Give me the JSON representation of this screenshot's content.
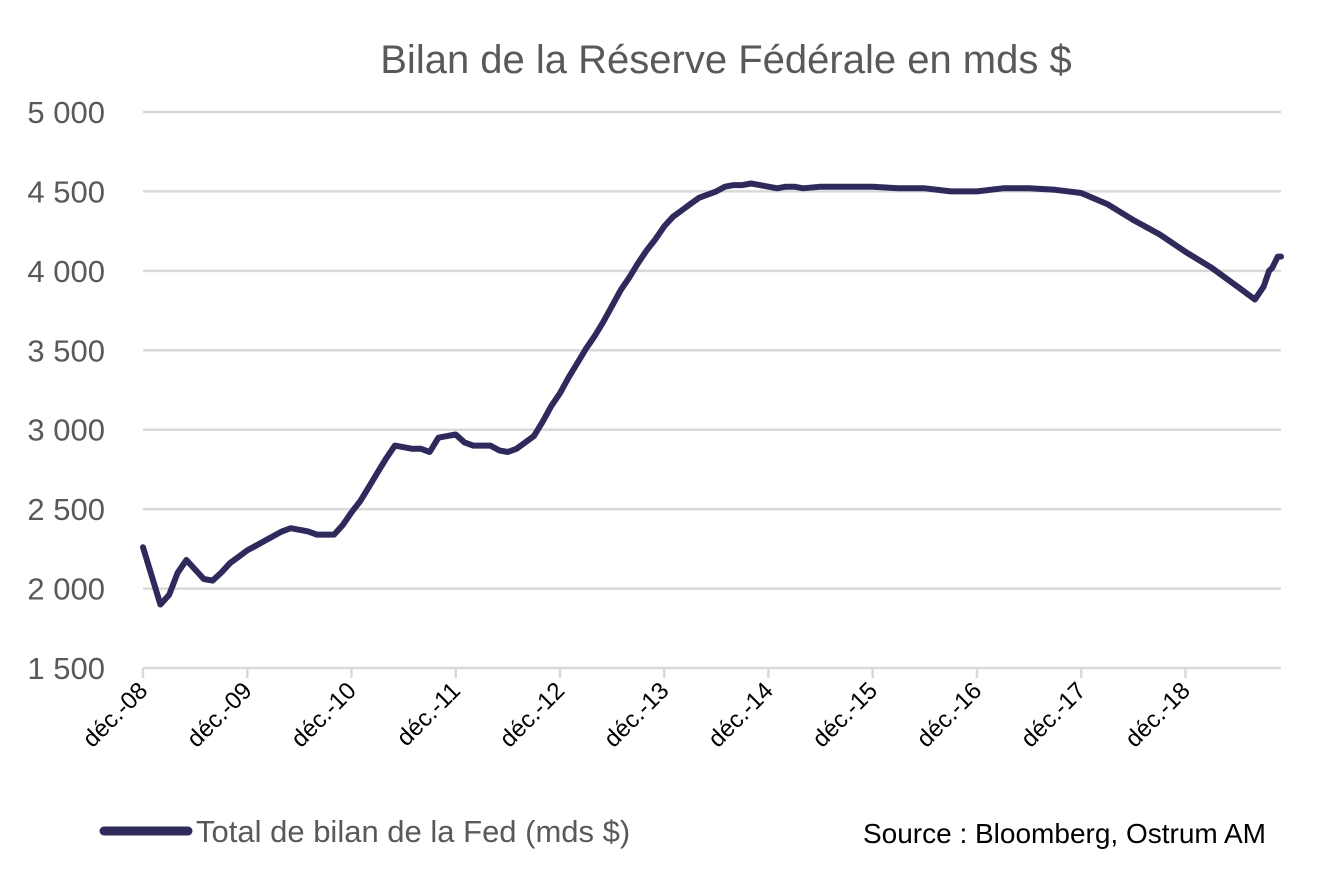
{
  "chart_data": {
    "type": "line",
    "title": "Bilan de la Réserve Fédérale en mds $",
    "xlabel": "",
    "ylabel": "",
    "ylim": [
      1500,
      5000
    ],
    "y_ticks": [
      {
        "value": 1500,
        "label": "1 500"
      },
      {
        "value": 2000,
        "label": "2 000"
      },
      {
        "value": 2500,
        "label": "2 500"
      },
      {
        "value": 3000,
        "label": "3 000"
      },
      {
        "value": 3500,
        "label": "3 500"
      },
      {
        "value": 4000,
        "label": "4 000"
      },
      {
        "value": 4500,
        "label": "4 500"
      },
      {
        "value": 5000,
        "label": "5 000"
      }
    ],
    "x_range": [
      "2008-12",
      "2019-11"
    ],
    "x_ticks": [
      {
        "date": "2008-12",
        "label": "déc.-08"
      },
      {
        "date": "2009-12",
        "label": "déc.-09"
      },
      {
        "date": "2010-12",
        "label": "déc.-10"
      },
      {
        "date": "2011-12",
        "label": "déc.-11"
      },
      {
        "date": "2012-12",
        "label": "déc.-12"
      },
      {
        "date": "2013-12",
        "label": "déc.-13"
      },
      {
        "date": "2014-12",
        "label": "déc.-14"
      },
      {
        "date": "2015-12",
        "label": "déc.-15"
      },
      {
        "date": "2016-12",
        "label": "déc.-16"
      },
      {
        "date": "2017-12",
        "label": "déc.-17"
      },
      {
        "date": "2018-12",
        "label": "déc.-18"
      }
    ],
    "grid": true,
    "legend_position": "bottom-left",
    "series": [
      {
        "name": "Total de bilan de la Fed (mds $)",
        "color": "#2e2a5c",
        "points": [
          {
            "x": "2008-12",
            "y": 2260
          },
          {
            "x": "2009-01",
            "y": 2080
          },
          {
            "x": "2009-02",
            "y": 1900
          },
          {
            "x": "2009-03",
            "y": 1960
          },
          {
            "x": "2009-04",
            "y": 2100
          },
          {
            "x": "2009-05",
            "y": 2180
          },
          {
            "x": "2009-06",
            "y": 2120
          },
          {
            "x": "2009-07",
            "y": 2060
          },
          {
            "x": "2009-08",
            "y": 2050
          },
          {
            "x": "2009-09",
            "y": 2100
          },
          {
            "x": "2009-10",
            "y": 2160
          },
          {
            "x": "2009-11",
            "y": 2200
          },
          {
            "x": "2009-12",
            "y": 2240
          },
          {
            "x": "2010-01",
            "y": 2270
          },
          {
            "x": "2010-02",
            "y": 2300
          },
          {
            "x": "2010-03",
            "y": 2330
          },
          {
            "x": "2010-04",
            "y": 2360
          },
          {
            "x": "2010-05",
            "y": 2380
          },
          {
            "x": "2010-06",
            "y": 2370
          },
          {
            "x": "2010-07",
            "y": 2360
          },
          {
            "x": "2010-08",
            "y": 2340
          },
          {
            "x": "2010-09",
            "y": 2340
          },
          {
            "x": "2010-10",
            "y": 2340
          },
          {
            "x": "2010-11",
            "y": 2400
          },
          {
            "x": "2010-12",
            "y": 2480
          },
          {
            "x": "2011-01",
            "y": 2550
          },
          {
            "x": "2011-02",
            "y": 2640
          },
          {
            "x": "2011-03",
            "y": 2730
          },
          {
            "x": "2011-04",
            "y": 2820
          },
          {
            "x": "2011-05",
            "y": 2900
          },
          {
            "x": "2011-06",
            "y": 2890
          },
          {
            "x": "2011-07",
            "y": 2880
          },
          {
            "x": "2011-08",
            "y": 2880
          },
          {
            "x": "2011-09",
            "y": 2860
          },
          {
            "x": "2011-10",
            "y": 2950
          },
          {
            "x": "2011-11",
            "y": 2960
          },
          {
            "x": "2011-12",
            "y": 2970
          },
          {
            "x": "2012-01",
            "y": 2920
          },
          {
            "x": "2012-02",
            "y": 2900
          },
          {
            "x": "2012-03",
            "y": 2900
          },
          {
            "x": "2012-04",
            "y": 2900
          },
          {
            "x": "2012-05",
            "y": 2870
          },
          {
            "x": "2012-06",
            "y": 2860
          },
          {
            "x": "2012-07",
            "y": 2880
          },
          {
            "x": "2012-08",
            "y": 2920
          },
          {
            "x": "2012-09",
            "y": 2960
          },
          {
            "x": "2012-10",
            "y": 3050
          },
          {
            "x": "2012-11",
            "y": 3150
          },
          {
            "x": "2012-12",
            "y": 3230
          },
          {
            "x": "2013-01",
            "y": 3330
          },
          {
            "x": "2013-02",
            "y": 3420
          },
          {
            "x": "2013-03",
            "y": 3510
          },
          {
            "x": "2013-04",
            "y": 3590
          },
          {
            "x": "2013-05",
            "y": 3680
          },
          {
            "x": "2013-06",
            "y": 3780
          },
          {
            "x": "2013-07",
            "y": 3880
          },
          {
            "x": "2013-08",
            "y": 3960
          },
          {
            "x": "2013-09",
            "y": 4050
          },
          {
            "x": "2013-10",
            "y": 4130
          },
          {
            "x": "2013-11",
            "y": 4200
          },
          {
            "x": "2013-12",
            "y": 4280
          },
          {
            "x": "2014-01",
            "y": 4340
          },
          {
            "x": "2014-02",
            "y": 4380
          },
          {
            "x": "2014-03",
            "y": 4420
          },
          {
            "x": "2014-04",
            "y": 4460
          },
          {
            "x": "2014-05",
            "y": 4480
          },
          {
            "x": "2014-06",
            "y": 4500
          },
          {
            "x": "2014-07",
            "y": 4530
          },
          {
            "x": "2014-08",
            "y": 4540
          },
          {
            "x": "2014-09",
            "y": 4540
          },
          {
            "x": "2014-10",
            "y": 4550
          },
          {
            "x": "2014-11",
            "y": 4540
          },
          {
            "x": "2014-12",
            "y": 4530
          },
          {
            "x": "2015-01",
            "y": 4520
          },
          {
            "x": "2015-02",
            "y": 4530
          },
          {
            "x": "2015-03",
            "y": 4530
          },
          {
            "x": "2015-04",
            "y": 4520
          },
          {
            "x": "2015-06",
            "y": 4530
          },
          {
            "x": "2015-09",
            "y": 4530
          },
          {
            "x": "2015-12",
            "y": 4530
          },
          {
            "x": "2016-03",
            "y": 4520
          },
          {
            "x": "2016-06",
            "y": 4520
          },
          {
            "x": "2016-09",
            "y": 4500
          },
          {
            "x": "2016-12",
            "y": 4500
          },
          {
            "x": "2017-03",
            "y": 4520
          },
          {
            "x": "2017-06",
            "y": 4520
          },
          {
            "x": "2017-09",
            "y": 4510
          },
          {
            "x": "2017-12",
            "y": 4490
          },
          {
            "x": "2018-03",
            "y": 4420
          },
          {
            "x": "2018-06",
            "y": 4320
          },
          {
            "x": "2018-09",
            "y": 4230
          },
          {
            "x": "2018-12",
            "y": 4120
          },
          {
            "x": "2019-03",
            "y": 4020
          },
          {
            "x": "2019-06",
            "y": 3900
          },
          {
            "x": "2019-08",
            "y": 3820
          },
          {
            "x": "2019-09",
            "y": 3900
          },
          {
            "x": "2019-09-20",
            "y": 4000
          },
          {
            "x": "2019-10",
            "y": 4020
          },
          {
            "x": "2019-10-20",
            "y": 4090
          },
          {
            "x": "2019-11",
            "y": 4090
          }
        ]
      }
    ]
  },
  "source": "Source : Bloomberg, Ostrum AM"
}
